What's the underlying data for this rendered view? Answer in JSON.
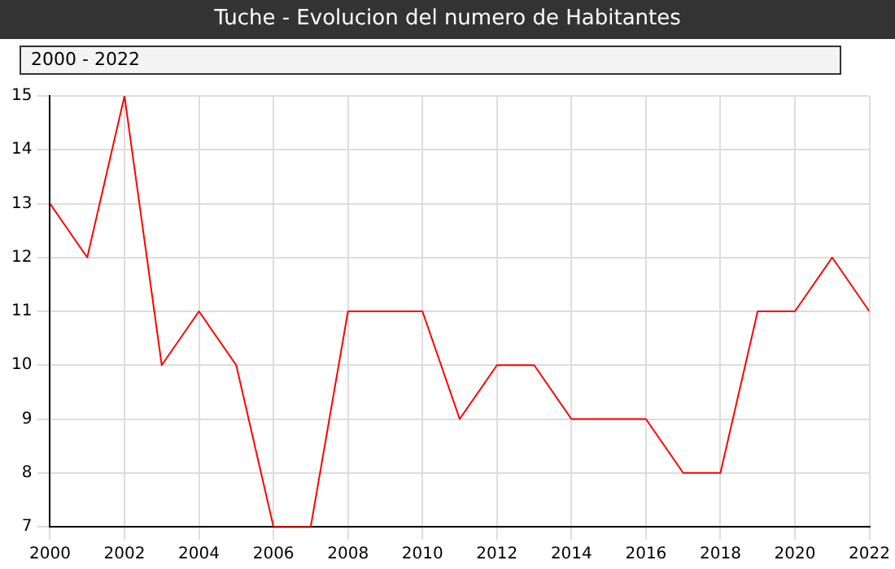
{
  "chart_data": {
    "type": "line",
    "title": "Tuche - Evolucion del numero de Habitantes",
    "annotations": [
      "2000 - 2022"
    ],
    "x": [
      2000,
      2001,
      2002,
      2003,
      2004,
      2005,
      2006,
      2007,
      2008,
      2009,
      2010,
      2011,
      2012,
      2013,
      2014,
      2015,
      2016,
      2017,
      2018,
      2019,
      2020,
      2021,
      2022
    ],
    "series": [
      {
        "color": "#ff0000",
        "values": [
          13,
          12,
          15,
          10,
          11,
          10,
          7,
          7,
          11,
          11,
          11,
          9,
          10,
          10,
          9,
          9,
          9,
          8,
          8,
          11,
          11,
          12,
          11
        ]
      }
    ],
    "xlim": [
      2000,
      2022
    ],
    "xticks": [
      2000,
      2002,
      2004,
      2006,
      2008,
      2010,
      2012,
      2014,
      2016,
      2018,
      2020,
      2022
    ],
    "ylim": [
      7,
      15
    ],
    "yticks": [
      7,
      8,
      9,
      10,
      11,
      12,
      13,
      14,
      15
    ],
    "grid": true,
    "legend": false,
    "marker": "none",
    "line_style": "solid"
  }
}
